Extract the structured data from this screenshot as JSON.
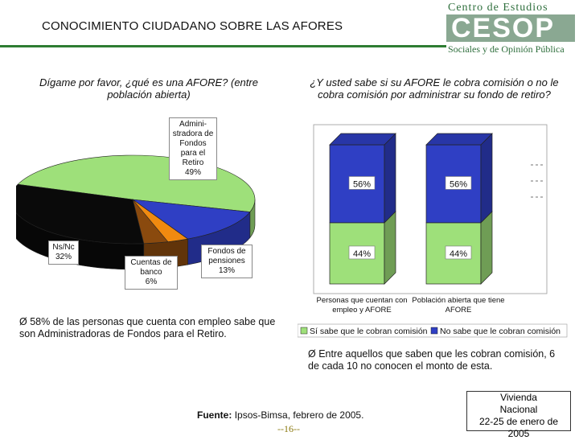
{
  "title": "CONOCIMIENTO CIUDADANO SOBRE LAS AFORES",
  "logo": {
    "line1": "Centro de Estudios",
    "mark": "CESOP",
    "line2": "Sociales y de Opinión Pública"
  },
  "question_left": "Dígame por favor, ¿qué es una AFORE? (entre población abierta)",
  "question_right": "¿Y usted sabe si su AFORE le cobra comisión o no le cobra comisión por administrar su fondo de retiro?",
  "note_left": "Ø 58% de las personas que cuenta con empleo sabe que son Administradoras de Fondos para el Retiro.",
  "note_right": "Ø Entre aquellos que saben que les cobran comisión, 6 de cada 10 no conocen el monto de esta.",
  "source_label": "Fuente:",
  "source_text": "Ipsos-Bimsa, febrero de 2005.",
  "page_number": "--16--",
  "box_info": {
    "line1": "Vivienda",
    "line2": "Nacional",
    "line3": "22-25 de enero de 2005"
  },
  "chart_data": [
    {
      "type": "pie",
      "slices": [
        {
          "label": "Administradora de Fondos para el Retiro",
          "label_lines": [
            "Admini-",
            "stradora de",
            "Fondos",
            "para el",
            "Retiro"
          ],
          "value": 49,
          "value_label": "49%",
          "color": "#9ee07a"
        },
        {
          "label": "Fondos de pensiones",
          "label_lines": [
            "Fondos de",
            "pensiones"
          ],
          "value": 13,
          "value_label": "13%",
          "color": "#2f3fc4"
        },
        {
          "label": "Cuentas de banco",
          "label_lines": [
            "Cuentas de",
            "banco"
          ],
          "value": 6,
          "value_label": "6%",
          "color": "#8a4a0e"
        },
        {
          "label": "Ns/Nc",
          "label_lines": [
            "Ns/Nc"
          ],
          "value": 32,
          "value_label": "32%",
          "color": "#0a0a0a"
        }
      ],
      "extra_slice_color": "#f08a10",
      "three_d": true
    },
    {
      "type": "bar",
      "stacked": true,
      "three_d": true,
      "categories": [
        "Personas que cuentan con empleo y AFORE",
        "Población abierta que tiene AFORE"
      ],
      "category_lines": [
        [
          "Personas que cuentan con",
          "empleo y AFORE"
        ],
        [
          "Población abierta que tiene",
          "AFORE"
        ]
      ],
      "series": [
        {
          "name": "Sí sabe que le cobran comisión",
          "values": [
            44,
            44
          ],
          "value_labels": [
            "44%",
            "44%"
          ],
          "color": "#9ee07a"
        },
        {
          "name": "No sabe que le cobran comisión",
          "values": [
            56,
            56
          ],
          "value_labels": [
            "56%",
            "56%"
          ],
          "color": "#2f3fc4"
        }
      ],
      "ylim": [
        0,
        100
      ],
      "legend_position": "bottom",
      "grid": false
    }
  ]
}
